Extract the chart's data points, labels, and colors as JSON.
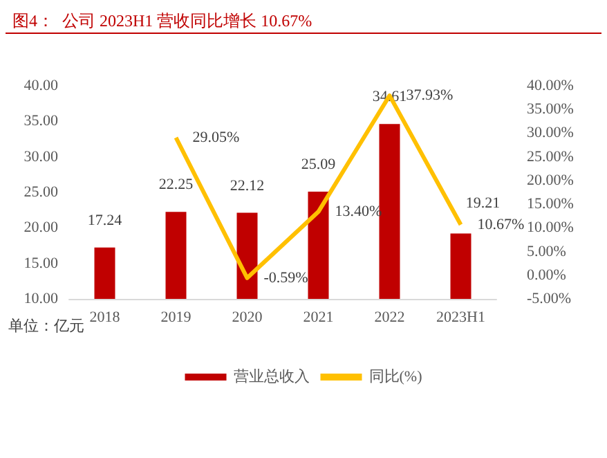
{
  "chart_data": {
    "type": "bar",
    "title": "图4：  公司 2023H1 营收同比增长 10.67%",
    "ylabel": "单位：亿元",
    "categories": [
      "2018",
      "2019",
      "2020",
      "2021",
      "2022",
      "2023H1"
    ],
    "series": [
      {
        "name": "营业总收入",
        "color": "#c00000",
        "values": [
          17.24,
          22.25,
          22.12,
          25.09,
          34.61,
          19.21
        ],
        "value_labels": [
          "17.24",
          "22.25",
          "22.12",
          "25.09",
          "34.61",
          "19.21"
        ]
      },
      {
        "name": "同比(%)",
        "type": "line",
        "axis": "y2",
        "color": "#ffc000",
        "values": [
          null,
          29.05,
          -0.59,
          13.4,
          37.93,
          10.67
        ],
        "value_labels": [
          null,
          "29.05%",
          "-0.59%",
          "13.40%",
          "37.93%",
          "10.67%"
        ]
      }
    ],
    "ylim": [
      10,
      40
    ],
    "yticks": [
      {
        "value": 10,
        "label": "10.00"
      },
      {
        "value": 15,
        "label": "15.00"
      },
      {
        "value": 20,
        "label": "20.00"
      },
      {
        "value": 25,
        "label": "25.00"
      },
      {
        "value": 30,
        "label": "30.00"
      },
      {
        "value": 35,
        "label": "35.00"
      },
      {
        "value": 40,
        "label": "40.00"
      }
    ],
    "y2lim": [
      -5,
      40
    ],
    "y2ticks": [
      {
        "value": -5,
        "label": "-5.00%"
      },
      {
        "value": 0,
        "label": "0.00%"
      },
      {
        "value": 5,
        "label": "5.00%"
      },
      {
        "value": 10,
        "label": "10.00%"
      },
      {
        "value": 15,
        "label": "15.00%"
      },
      {
        "value": 20,
        "label": "20.00%"
      },
      {
        "value": 25,
        "label": "25.00%"
      },
      {
        "value": 30,
        "label": "30.00%"
      },
      {
        "value": 35,
        "label": "35.00%"
      },
      {
        "value": 40,
        "label": "40.00%"
      }
    ],
    "legend": "bottom",
    "grid": false,
    "marker": "none"
  }
}
